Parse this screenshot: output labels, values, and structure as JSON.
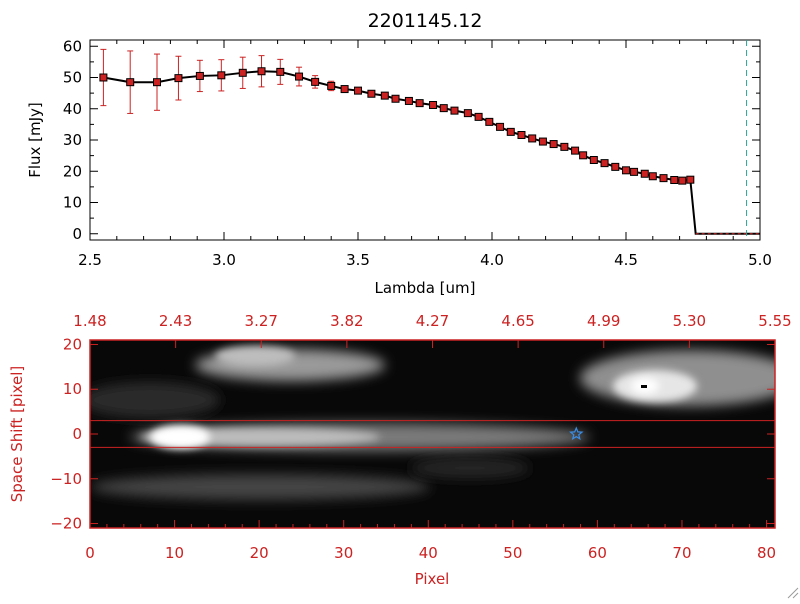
{
  "title": "2201145.12",
  "colors": {
    "axis": "#000000",
    "marker": "#cc2222",
    "accent": "#cc2222",
    "line": "#000000",
    "dashed": "#2a9d8f",
    "star": "#3a8ee6"
  },
  "chart_data": [
    {
      "type": "line",
      "title": "2201145.12",
      "xlabel": "Lambda [um]",
      "ylabel": "Flux [mJy]",
      "xlim": [
        2.5,
        5.0
      ],
      "ylim": [
        -2,
        62
      ],
      "xticks": [
        2.5,
        3.0,
        3.5,
        4.0,
        4.5,
        5.0
      ],
      "xtick_labels": [
        "2.5",
        "3.0",
        "3.5",
        "4.0",
        "4.5",
        "5.0"
      ],
      "yticks": [
        0,
        10,
        20,
        30,
        40,
        50,
        60
      ],
      "ytick_labels": [
        "0",
        "10",
        "20",
        "30",
        "40",
        "50",
        "60"
      ],
      "x": [
        2.55,
        2.65,
        2.75,
        2.83,
        2.91,
        2.99,
        3.07,
        3.14,
        3.21,
        3.28,
        3.34,
        3.4,
        3.45,
        3.5,
        3.55,
        3.6,
        3.64,
        3.69,
        3.73,
        3.78,
        3.82,
        3.86,
        3.91,
        3.95,
        3.99,
        4.03,
        4.07,
        4.11,
        4.15,
        4.19,
        4.23,
        4.27,
        4.31,
        4.34,
        4.38,
        4.42,
        4.46,
        4.5,
        4.53,
        4.57,
        4.6,
        4.64,
        4.68,
        4.71,
        4.74
      ],
      "values": [
        50.0,
        48.5,
        48.5,
        49.8,
        50.5,
        50.7,
        51.5,
        52.0,
        51.8,
        50.3,
        48.6,
        47.3,
        46.3,
        45.8,
        44.8,
        44.2,
        43.2,
        42.5,
        41.8,
        41.2,
        40.2,
        39.4,
        38.6,
        37.4,
        35.8,
        34.2,
        32.6,
        31.6,
        30.5,
        29.5,
        28.7,
        27.8,
        26.6,
        25.1,
        23.6,
        22.6,
        21.4,
        20.3,
        19.8,
        19.2,
        18.4,
        17.8,
        17.2,
        17.0,
        17.3
      ],
      "errors": [
        9.0,
        10.0,
        9.0,
        7.0,
        5.0,
        5.0,
        5.0,
        5.0,
        4.0,
        3.0,
        2.0,
        1.5,
        1.0,
        1.0,
        1.0,
        1.0,
        1.0,
        1.0,
        1.0,
        1.0,
        1.0,
        1.0,
        1.0,
        1.0,
        1.0,
        1.0,
        1.0,
        1.0,
        1.0,
        1.0,
        1.0,
        1.0,
        1.0,
        1.0,
        1.0,
        1.0,
        1.0,
        1.0,
        1.0,
        1.0,
        1.0,
        1.0,
        1.0,
        1.0,
        1.0
      ],
      "dropoff": {
        "from": [
          4.74,
          17.3
        ],
        "to": [
          4.76,
          0
        ],
        "flat_to": 5.0
      },
      "dashed_vline_x": 4.95
    },
    {
      "type": "heatmap",
      "xlabel": "Pixel",
      "ylabel": "Space Shift [pixel]",
      "xlim": [
        0,
        81
      ],
      "ylim": [
        -21,
        21
      ],
      "xticks": [
        0,
        10,
        20,
        30,
        40,
        50,
        60,
        70,
        80
      ],
      "xtick_labels": [
        "0",
        "10",
        "20",
        "30",
        "40",
        "50",
        "60",
        "70",
        "80"
      ],
      "yticks": [
        -20,
        -10,
        0,
        10,
        20
      ],
      "ytick_labels": [
        "−20",
        "−10",
        "0",
        "10",
        "20"
      ],
      "top_axis_labels": [
        "1.48",
        "2.43",
        "3.27",
        "3.82",
        "4.27",
        "4.65",
        "4.99",
        "5.30",
        "5.55"
      ],
      "aperture_lines": [
        3,
        -3
      ],
      "star_marker": [
        57.5,
        0
      ]
    }
  ]
}
